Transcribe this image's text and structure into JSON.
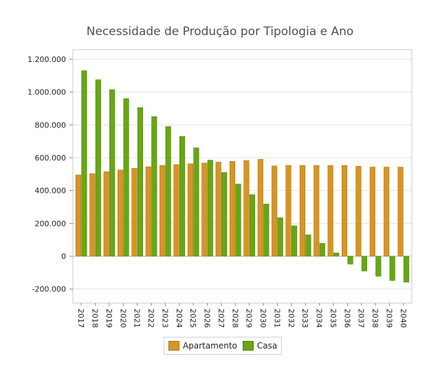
{
  "chart_data": {
    "type": "bar",
    "title": "Necessidade de Produção por Tipologia e Ano",
    "categories": [
      "2017",
      "2018",
      "2019",
      "2020",
      "2021",
      "2022",
      "2023",
      "2024",
      "2025",
      "2026",
      "2027",
      "2028",
      "2029",
      "2030",
      "2031",
      "2032",
      "2033",
      "2034",
      "2035",
      "2036",
      "2037",
      "2038",
      "2039",
      "2040"
    ],
    "series": [
      {
        "name": "Apartamento",
        "color": "#d4962a",
        "values": [
          495000,
          503000,
          515000,
          525000,
          535000,
          545000,
          553000,
          558000,
          563000,
          568000,
          573000,
          578000,
          583000,
          590000,
          550000,
          553000,
          553000,
          553000,
          553000,
          553000,
          548000,
          543000,
          543000,
          543000
        ]
      },
      {
        "name": "Casa",
        "color": "#6aa518",
        "values": [
          1130000,
          1075000,
          1015000,
          960000,
          905000,
          850000,
          790000,
          730000,
          660000,
          585000,
          510000,
          440000,
          375000,
          318000,
          235000,
          185000,
          130000,
          78000,
          20000,
          -48000,
          -90000,
          -122000,
          -148000,
          -158000
        ]
      }
    ],
    "ylim": [
      -280000,
      1200000
    ],
    "yticks": [
      -200000,
      0,
      200000,
      400000,
      600000,
      800000,
      1000000,
      1200000
    ],
    "ytick_labels": [
      "-200.000",
      "0",
      "200.000",
      "400.000",
      "600.000",
      "800.000",
      "1.000.000",
      "1.200.000"
    ],
    "grid": true,
    "legend_position": "bottom"
  }
}
